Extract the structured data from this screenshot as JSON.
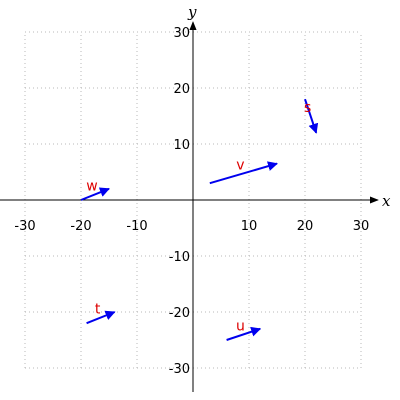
{
  "chart_data": {
    "type": "vector-plot",
    "xlim": [
      -30,
      30
    ],
    "ylim": [
      -30,
      30
    ],
    "xlabel": "x",
    "ylabel": "y",
    "x_ticks": [
      -30,
      -20,
      -10,
      10,
      20,
      30
    ],
    "y_ticks": [
      -30,
      -20,
      -10,
      10,
      20,
      30
    ],
    "grid": true,
    "vector_color": "#0000ee",
    "label_color": "#dd0000",
    "vectors": [
      {
        "label": "s",
        "from": [
          20,
          18
        ],
        "to": [
          22,
          12
        ]
      },
      {
        "label": "v",
        "from": [
          3,
          3
        ],
        "to": [
          15,
          6.5
        ]
      },
      {
        "label": "w",
        "from": [
          -20,
          0
        ],
        "to": [
          -15,
          2
        ]
      },
      {
        "label": "t",
        "from": [
          -19,
          -22
        ],
        "to": [
          -14,
          -20
        ]
      },
      {
        "label": "u",
        "from": [
          6,
          -25
        ],
        "to": [
          12,
          -23
        ]
      }
    ]
  }
}
